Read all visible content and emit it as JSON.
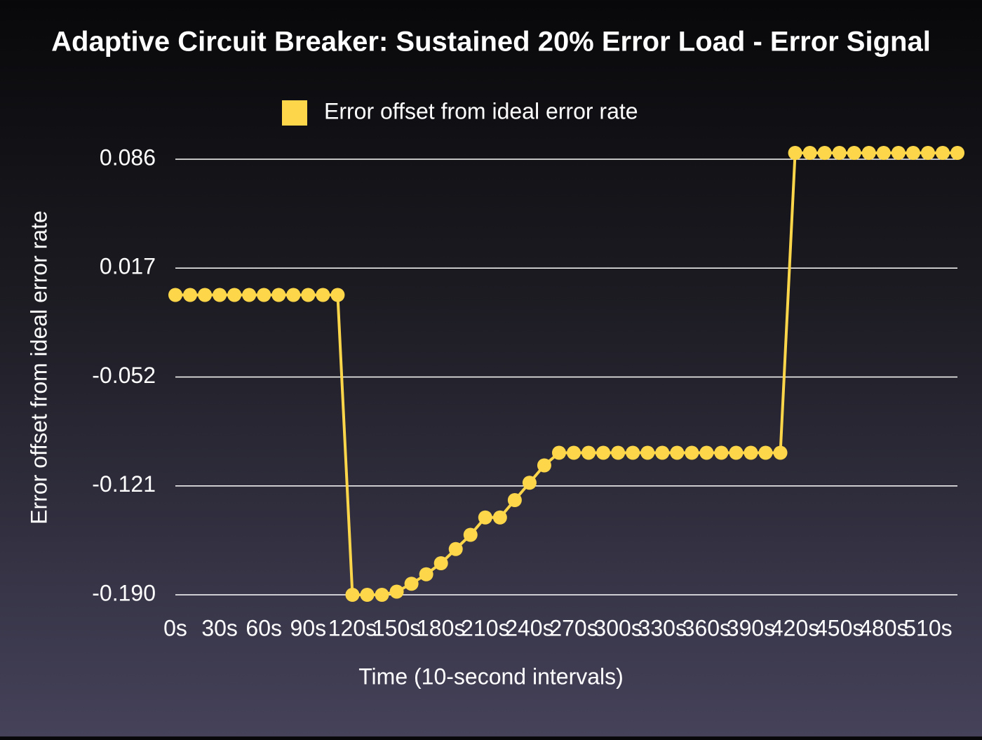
{
  "chart_data": {
    "type": "line",
    "title": "Adaptive Circuit Breaker: Sustained 20% Error Load - Error Signal",
    "x_label": "Time (10-second intervals)",
    "y_label": "Error offset from ideal error rate",
    "categories": [
      "0s",
      null,
      null,
      "30s",
      null,
      null,
      "60s",
      null,
      null,
      "90s",
      null,
      null,
      "120s",
      null,
      null,
      "150s",
      null,
      null,
      "180s",
      null,
      null,
      "210s",
      null,
      null,
      "240s",
      null,
      null,
      "270s",
      null,
      null,
      "300s",
      null,
      null,
      "330s",
      null,
      null,
      "360s",
      null,
      null,
      "390s",
      null,
      null,
      "420s",
      null,
      null,
      "450s",
      null,
      null,
      "480s",
      null,
      null,
      "510s",
      null,
      null
    ],
    "series": [
      {
        "name": "Error offset from ideal error rate",
        "color": "#fdd64a",
        "values": [
          0.0,
          0.0,
          0.0,
          0.0,
          0.0,
          0.0,
          0.0,
          0.0,
          0.0,
          0.0,
          0.0,
          0.0,
          -0.19,
          -0.19,
          -0.19,
          -0.188,
          -0.183,
          -0.177,
          -0.17,
          -0.161,
          -0.152,
          -0.141,
          -0.141,
          -0.13,
          -0.119,
          -0.108,
          -0.1,
          -0.1,
          -0.1,
          -0.1,
          -0.1,
          -0.1,
          -0.1,
          -0.1,
          -0.1,
          -0.1,
          -0.1,
          -0.1,
          -0.1,
          -0.1,
          -0.1,
          -0.1,
          0.09,
          0.09,
          0.09,
          0.09,
          0.09,
          0.09,
          0.09,
          0.09,
          0.09,
          0.09,
          0.09,
          0.09
        ]
      }
    ],
    "ylim": [
      -0.19,
      0.086
    ],
    "yticks": [
      -0.19,
      -0.121,
      -0.052,
      0.017,
      0.086
    ],
    "ytick_labels": [
      "-0.190",
      "-0.121",
      "-0.052",
      "0.017",
      "0.086"
    ],
    "grid": true,
    "legend": "top"
  }
}
